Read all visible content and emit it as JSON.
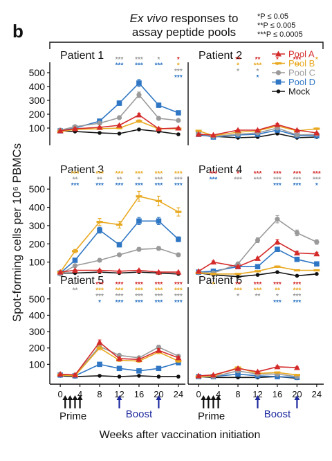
{
  "panel_letter": "b",
  "header": {
    "title_italic": "Ex vivo",
    "title_rest_1": " responses to",
    "title_line2": "assay peptide pools"
  },
  "significance_key": [
    "*P ≤ 0.05",
    "**P ≤ 0.005",
    "***P ≤ 0.0005"
  ],
  "y_axis_title": "Spot-forming cells per 10⁶ PBMCs",
  "x_axis_title": "Weeks after vaccination initiation",
  "phase_labels": {
    "prime": "Prime",
    "boost": "Boost"
  },
  "legend": [
    {
      "name": "Pool A",
      "color": "#d42a2a",
      "marker": "triangle"
    },
    {
      "name": "Pool B",
      "color": "#e8a921",
      "marker": "dash"
    },
    {
      "name": "Pool C",
      "color": "#9a9a9a",
      "marker": "circle"
    },
    {
      "name": "Pool D",
      "color": "#2f76c4",
      "marker": "square"
    },
    {
      "name": "Mock",
      "color": "#111111",
      "marker": "circle"
    }
  ],
  "chart_data": [
    {
      "type": "line",
      "title": "Patient 1",
      "x": [
        0,
        3,
        8,
        12,
        16,
        20,
        24
      ],
      "ylim": [
        0,
        550
      ],
      "yticks": [
        100,
        200,
        300,
        400,
        500
      ],
      "xticks": [],
      "series": [
        {
          "name": "Pool A",
          "values": [
            80,
            95,
            105,
            120,
            195,
            95,
            100
          ]
        },
        {
          "name": "Pool B",
          "values": [
            75,
            90,
            95,
            100,
            150,
            95,
            95
          ]
        },
        {
          "name": "Pool C",
          "values": [
            85,
            110,
            135,
            175,
            340,
            170,
            155
          ]
        },
        {
          "name": "Pool D",
          "values": [
            80,
            100,
            150,
            280,
            425,
            265,
            210
          ]
        },
        {
          "name": "Mock",
          "values": [
            80,
            75,
            65,
            60,
            90,
            75,
            55
          ]
        }
      ],
      "annotations": [
        {
          "x": 12,
          "rows": [
            [
              "***",
              "Pool C"
            ],
            [
              "***",
              "Pool D"
            ]
          ]
        },
        {
          "x": 16,
          "rows": [
            [
              "***",
              "Pool C"
            ],
            [
              "***",
              "Pool D"
            ]
          ]
        },
        {
          "x": 20,
          "rows": [
            [
              "*",
              "Pool C"
            ],
            [
              "***",
              "Pool D"
            ]
          ]
        },
        {
          "x": 24,
          "rows": [
            [
              "*",
              "Pool A"
            ],
            [
              "*",
              "Pool B"
            ],
            [
              "***",
              "Pool C"
            ],
            [
              "***",
              "Pool D"
            ]
          ]
        }
      ]
    },
    {
      "type": "line",
      "title": "Patient 2",
      "x": [
        0,
        3,
        8,
        12,
        16,
        20,
        24
      ],
      "ylim": [
        0,
        550
      ],
      "yticks": [],
      "xticks": [],
      "series": [
        {
          "name": "Pool A",
          "values": [
            55,
            50,
            85,
            85,
            125,
            85,
            65
          ]
        },
        {
          "name": "Pool B",
          "values": [
            80,
            45,
            70,
            80,
            115,
            80,
            95
          ]
        },
        {
          "name": "Pool C",
          "values": [
            60,
            40,
            55,
            65,
            100,
            50,
            55
          ]
        },
        {
          "name": "Pool D",
          "values": [
            55,
            35,
            50,
            55,
            85,
            45,
            45
          ]
        },
        {
          "name": "Mock",
          "values": [
            50,
            40,
            30,
            35,
            60,
            30,
            35
          ]
        }
      ],
      "annotations": [
        {
          "x": 8,
          "rows": [
            [
              "**",
              "Pool A"
            ],
            [
              "*",
              "Pool B"
            ],
            [
              "*",
              "Pool C"
            ]
          ]
        },
        {
          "x": 12,
          "rows": [
            [
              "**",
              "Pool A"
            ],
            [
              "***",
              "Pool B"
            ],
            [
              "*",
              "Pool C"
            ],
            [
              "*",
              "Pool D"
            ]
          ]
        },
        {
          "x": 16,
          "rows": [
            [
              "*",
              "Pool A"
            ],
            [
              "*",
              "Pool B"
            ]
          ]
        },
        {
          "x": 20,
          "rows": [
            [
              "***",
              "Pool A"
            ],
            [
              "**",
              "Pool B"
            ]
          ]
        },
        {
          "x": 24,
          "rows": [
            [
              "*",
              "Pool B"
            ]
          ]
        }
      ]
    },
    {
      "type": "line",
      "title": "Patient 3",
      "x": [
        0,
        3,
        8,
        12,
        16,
        20,
        24
      ],
      "ylim": [
        0,
        550
      ],
      "yticks": [
        100,
        200,
        300,
        400,
        500
      ],
      "xticks": [],
      "series": [
        {
          "name": "Pool A",
          "values": [
            45,
            55,
            55,
            50,
            55,
            45,
            45
          ]
        },
        {
          "name": "Pool B",
          "values": [
            45,
            160,
            320,
            305,
            460,
            435,
            375
          ]
        },
        {
          "name": "Pool C",
          "values": [
            35,
            80,
            110,
            140,
            170,
            175,
            140
          ]
        },
        {
          "name": "Pool D",
          "values": [
            40,
            110,
            275,
            195,
            325,
            325,
            225
          ]
        },
        {
          "name": "Mock",
          "values": [
            40,
            40,
            45,
            40,
            45,
            40,
            35
          ]
        }
      ],
      "annotations": [
        {
          "x": 3,
          "rows": [
            [
              "***",
              "Pool B"
            ],
            [
              "**",
              "Pool C"
            ],
            [
              "***",
              "Pool D"
            ]
          ]
        },
        {
          "x": 8,
          "rows": [
            [
              "***",
              "Pool B"
            ],
            [
              "**",
              "Pool C"
            ],
            [
              "***",
              "Pool D"
            ]
          ]
        },
        {
          "x": 12,
          "rows": [
            [
              "***",
              "Pool B"
            ],
            [
              "**",
              "Pool C"
            ],
            [
              "***",
              "Pool D"
            ]
          ]
        },
        {
          "x": 16,
          "rows": [
            [
              "***",
              "Pool B"
            ],
            [
              "*",
              "Pool C"
            ],
            [
              "***",
              "Pool D"
            ]
          ]
        },
        {
          "x": 20,
          "rows": [
            [
              "***",
              "Pool B"
            ],
            [
              "***",
              "Pool C"
            ],
            [
              "***",
              "Pool D"
            ]
          ]
        },
        {
          "x": 24,
          "rows": [
            [
              "***",
              "Pool B"
            ],
            [
              "***",
              "Pool C"
            ],
            [
              "***",
              "Pool D"
            ]
          ]
        }
      ]
    },
    {
      "type": "line",
      "title": "Patient 4",
      "x": [
        0,
        3,
        8,
        12,
        16,
        20,
        24
      ],
      "ylim": [
        0,
        550
      ],
      "yticks": [],
      "xticks": [],
      "series": [
        {
          "name": "Pool A",
          "values": [
            50,
            100,
            75,
            120,
            210,
            150,
            145
          ]
        },
        {
          "name": "Pool B",
          "values": [
            40,
            35,
            35,
            50,
            75,
            55,
            55
          ]
        },
        {
          "name": "Pool C",
          "values": [
            45,
            40,
            90,
            220,
            335,
            260,
            210
          ]
        },
        {
          "name": "Pool D",
          "values": [
            45,
            50,
            75,
            75,
            170,
            115,
            90
          ]
        },
        {
          "name": "Mock",
          "values": [
            40,
            30,
            20,
            30,
            45,
            25,
            35
          ]
        }
      ],
      "annotations": [
        {
          "x": 3,
          "rows": [
            [
              "***",
              "Pool A"
            ],
            [
              "***",
              "Pool D"
            ]
          ]
        },
        {
          "x": 8,
          "rows": [
            [
              "*",
              "Pool A"
            ],
            [
              "***",
              "Pool C"
            ]
          ]
        },
        {
          "x": 12,
          "rows": [
            [
              "***",
              "Pool A"
            ],
            [
              "***",
              "Pool C"
            ]
          ]
        },
        {
          "x": 16,
          "rows": [
            [
              "***",
              "Pool A"
            ],
            [
              "***",
              "Pool C"
            ],
            [
              "***",
              "Pool D"
            ]
          ]
        },
        {
          "x": 20,
          "rows": [
            [
              "***",
              "Pool A"
            ],
            [
              "***",
              "Pool C"
            ],
            [
              "***",
              "Pool D"
            ]
          ]
        },
        {
          "x": 24,
          "rows": [
            [
              "***",
              "Pool A"
            ],
            [
              "***",
              "Pool C"
            ],
            [
              "*",
              "Pool D"
            ]
          ]
        }
      ]
    },
    {
      "type": "line",
      "title": "Patient 5",
      "x": [
        0,
        3,
        8,
        12,
        16,
        20,
        24
      ],
      "ylim": [
        0,
        550
      ],
      "yticks": [
        100,
        200,
        300,
        400,
        500
      ],
      "xticks": [
        0,
        4,
        8,
        12,
        16,
        20,
        24
      ],
      "series": [
        {
          "name": "Pool A",
          "values": [
            40,
            35,
            235,
            135,
            130,
            185,
            140
          ]
        },
        {
          "name": "Pool B",
          "values": [
            35,
            30,
            200,
            125,
            120,
            175,
            120
          ]
        },
        {
          "name": "Pool C",
          "values": [
            40,
            35,
            210,
            155,
            140,
            205,
            150
          ]
        },
        {
          "name": "Pool D",
          "values": [
            35,
            30,
            100,
            75,
            60,
            75,
            110
          ]
        },
        {
          "name": "Mock",
          "values": [
            30,
            25,
            30,
            25,
            30,
            25,
            25
          ]
        }
      ],
      "annotations": [
        {
          "x": 3,
          "rows": [
            [
              "*",
              "Pool C"
            ],
            [
              "**",
              "Pool C"
            ]
          ]
        },
        {
          "x": 8,
          "rows": [
            [
              "***",
              "Pool A"
            ],
            [
              "***",
              "Pool B"
            ],
            [
              "***",
              "Pool C"
            ],
            [
              "*",
              "Pool D"
            ]
          ]
        },
        {
          "x": 12,
          "rows": [
            [
              "***",
              "Pool A"
            ],
            [
              "***",
              "Pool B"
            ],
            [
              "***",
              "Pool C"
            ],
            [
              "***",
              "Pool D"
            ]
          ]
        },
        {
          "x": 16,
          "rows": [
            [
              "***",
              "Pool A"
            ],
            [
              "***",
              "Pool B"
            ],
            [
              "***",
              "Pool C"
            ],
            [
              "***",
              "Pool D"
            ]
          ]
        },
        {
          "x": 20,
          "rows": [
            [
              "***",
              "Pool A"
            ],
            [
              "***",
              "Pool B"
            ],
            [
              "***",
              "Pool C"
            ],
            [
              "***",
              "Pool D"
            ]
          ]
        },
        {
          "x": 24,
          "rows": [
            [
              "***",
              "Pool A"
            ],
            [
              "***",
              "Pool B"
            ],
            [
              "***",
              "Pool C"
            ],
            [
              "***",
              "Pool D"
            ]
          ]
        }
      ]
    },
    {
      "type": "line",
      "title": "Patient 6",
      "x": [
        0,
        3,
        8,
        12,
        16,
        20,
        24
      ],
      "ylim": [
        0,
        550
      ],
      "yticks": [],
      "xticks": [
        0,
        4,
        8,
        12,
        16,
        20,
        24
      ],
      "series": [
        {
          "name": "Pool A",
          "values": [
            30,
            35,
            75,
            55,
            85,
            80,
            null
          ]
        },
        {
          "name": "Pool B",
          "values": [
            25,
            30,
            80,
            45,
            50,
            35,
            null
          ]
        },
        {
          "name": "Pool C",
          "values": [
            25,
            25,
            60,
            40,
            40,
            25,
            null
          ]
        },
        {
          "name": "Pool D",
          "values": [
            25,
            25,
            40,
            30,
            25,
            20,
            null
          ]
        },
        {
          "name": "Mock",
          "values": [
            25,
            20,
            20,
            20,
            25,
            15,
            null
          ]
        }
      ],
      "annotations": [
        {
          "x": 3,
          "rows": [
            [
              "*",
              "Pool B"
            ]
          ]
        },
        {
          "x": 8,
          "rows": [
            [
              "**",
              "Pool A"
            ],
            [
              "***",
              "Pool B"
            ],
            [
              "*",
              "Pool C"
            ]
          ]
        },
        {
          "x": 12,
          "rows": [
            [
              "***",
              "Pool A"
            ],
            [
              "***",
              "Pool B"
            ],
            [
              "**",
              "Pool C"
            ]
          ]
        },
        {
          "x": 16,
          "rows": [
            [
              "***",
              "Pool A"
            ],
            [
              "**",
              "Pool B"
            ],
            [
              "*",
              "Pool C"
            ],
            [
              "***",
              "Pool D"
            ]
          ]
        },
        {
          "x": 20,
          "rows": [
            [
              "***",
              "Pool A"
            ],
            [
              "***",
              "Pool B"
            ],
            [
              "***",
              "Pool C"
            ],
            [
              "***",
              "Pool D"
            ]
          ]
        }
      ]
    }
  ]
}
